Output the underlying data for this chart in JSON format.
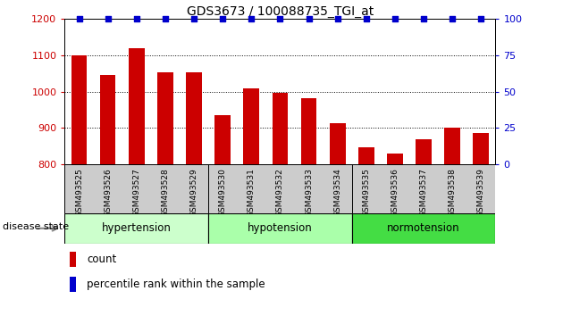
{
  "title": "GDS3673 / 100088735_TGI_at",
  "samples": [
    "GSM493525",
    "GSM493526",
    "GSM493527",
    "GSM493528",
    "GSM493529",
    "GSM493530",
    "GSM493531",
    "GSM493532",
    "GSM493533",
    "GSM493534",
    "GSM493535",
    "GSM493536",
    "GSM493537",
    "GSM493538",
    "GSM493539"
  ],
  "counts": [
    1100,
    1047,
    1120,
    1052,
    1052,
    935,
    1010,
    997,
    983,
    912,
    848,
    830,
    870,
    900,
    885
  ],
  "percentiles": [
    100,
    100,
    100,
    100,
    100,
    100,
    100,
    100,
    100,
    100,
    100,
    100,
    100,
    100,
    100
  ],
  "groups": [
    {
      "label": "hypertension",
      "start": 0,
      "end": 5,
      "color": "#ccffcc"
    },
    {
      "label": "hypotension",
      "start": 5,
      "end": 10,
      "color": "#aaffaa"
    },
    {
      "label": "normotension",
      "start": 10,
      "end": 15,
      "color": "#44dd44"
    }
  ],
  "ylim_left": [
    800,
    1200
  ],
  "ylim_right": [
    0,
    100
  ],
  "yticks_left": [
    800,
    900,
    1000,
    1100,
    1200
  ],
  "yticks_right": [
    0,
    25,
    50,
    75,
    100
  ],
  "bar_color": "#cc0000",
  "dot_color": "#0000cc",
  "bar_width": 0.55,
  "bg_xtick": "#cccccc",
  "disease_label": "disease state"
}
